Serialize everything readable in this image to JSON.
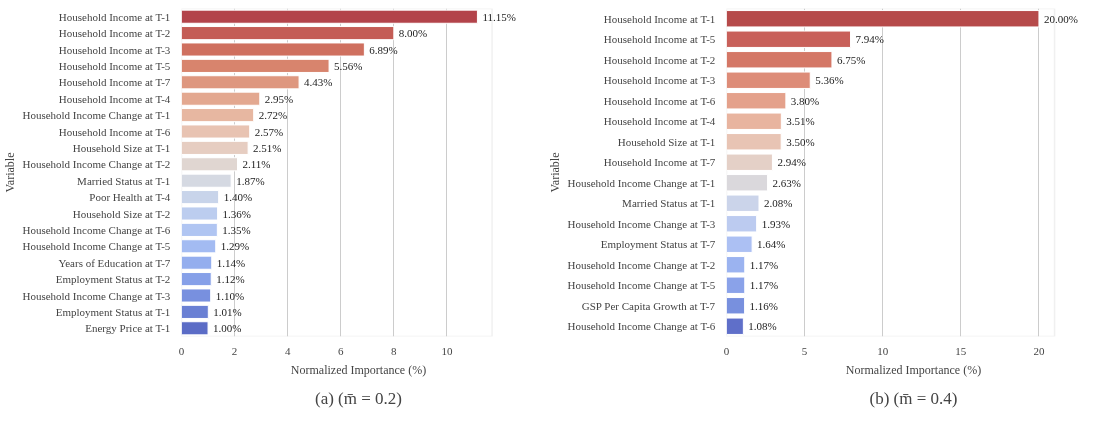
{
  "chart_data": [
    {
      "type": "bar",
      "orientation": "horizontal",
      "xlabel": "Normalized Importance (%)",
      "ylabel": "Variable",
      "grid": "x",
      "xlim": [
        0,
        11.7
      ],
      "xticks": [
        0,
        2,
        4,
        6,
        8,
        10
      ],
      "categories": [
        "Household Income at T-1",
        "Household Income at T-2",
        "Household Income at T-3",
        "Household Income at T-5",
        "Household Income at T-7",
        "Household Income at T-4",
        "Household Income Change at T-1",
        "Household Income at T-6",
        "Household Size at T-1",
        "Household Income Change at T-2",
        "Married Status at T-1",
        "Poor Health at T-4",
        "Household Size at T-2",
        "Household Income Change at T-6",
        "Household Income Change at T-5",
        "Years of Education at T-7",
        "Employment Status at T-2",
        "Household Income Change at T-3",
        "Employment Status at T-1",
        "Energy Price at T-1"
      ],
      "values": [
        11.15,
        8.0,
        6.89,
        5.56,
        4.43,
        2.95,
        2.72,
        2.57,
        2.51,
        2.11,
        1.87,
        1.4,
        1.36,
        1.35,
        1.29,
        1.14,
        1.12,
        1.1,
        1.01,
        1.0
      ],
      "value_labels": [
        "11.15%",
        "8.00%",
        "6.89%",
        "5.56%",
        "4.43%",
        "2.95%",
        "2.72%",
        "2.57%",
        "2.51%",
        "2.11%",
        "1.87%",
        "1.40%",
        "1.36%",
        "1.35%",
        "1.29%",
        "1.14%",
        "1.12%",
        "1.10%",
        "1.01%",
        "1.00%"
      ],
      "colors": [
        "#b3434a",
        "#c45c55",
        "#cf705f",
        "#d8846d",
        "#de977f",
        "#e3a890",
        "#e7b7a1",
        "#e8c3b2",
        "#e6cdc1",
        "#e0d6d1",
        "#d5d9e2",
        "#c8d4ea",
        "#bccdef",
        "#b0c5f2",
        "#a3bbf2",
        "#94aeee",
        "#86a0e8",
        "#7890df",
        "#6a80d4",
        "#5b6cc6"
      ],
      "annotations": [
        "(a) (m̄ = 0.2)"
      ]
    },
    {
      "type": "bar",
      "orientation": "horizontal",
      "xlabel": "Normalized Importance (%)",
      "ylabel": "Variable",
      "grid": "x",
      "xlim": [
        0,
        21
      ],
      "xticks": [
        0,
        5,
        10,
        15,
        20
      ],
      "categories": [
        "Household Income at T-1",
        "Household Income at T-5",
        "Household Income at T-2",
        "Household Income at T-3",
        "Household Income at T-6",
        "Household Income at T-4",
        "Household Size at T-1",
        "Household Income at T-7",
        "Household Income Change at T-1",
        "Married Status at T-1",
        "Household Income Change at T-3",
        "Employment Status at T-7",
        "Household Income Change at T-2",
        "Household Income Change at T-5",
        "GSP Per Capita Growth at T-7",
        "Household Income Change at T-6"
      ],
      "values": [
        20.0,
        7.94,
        6.75,
        5.36,
        3.8,
        3.51,
        3.5,
        2.94,
        2.63,
        2.08,
        1.93,
        1.64,
        1.17,
        1.17,
        1.16,
        1.08
      ],
      "value_labels": [
        "20.00%",
        "7.94%",
        "6.75%",
        "5.36%",
        "3.80%",
        "3.51%",
        "3.50%",
        "2.94%",
        "2.63%",
        "2.08%",
        "1.93%",
        "1.64%",
        "1.17%",
        "1.17%",
        "1.16%",
        "1.08%"
      ],
      "colors": [
        "#b64a4a",
        "#c8605a",
        "#d47766",
        "#dd8c78",
        "#e4a18b",
        "#e8b49f",
        "#e8c4b4",
        "#e4d0c7",
        "#dad8dc",
        "#cbd4ea",
        "#bccbf0",
        "#acc0f3",
        "#9bb3f0",
        "#8aa2e9",
        "#7890de",
        "#5f6fc9"
      ],
      "annotations": [
        "(b) (m̄ = 0.4)"
      ]
    }
  ]
}
